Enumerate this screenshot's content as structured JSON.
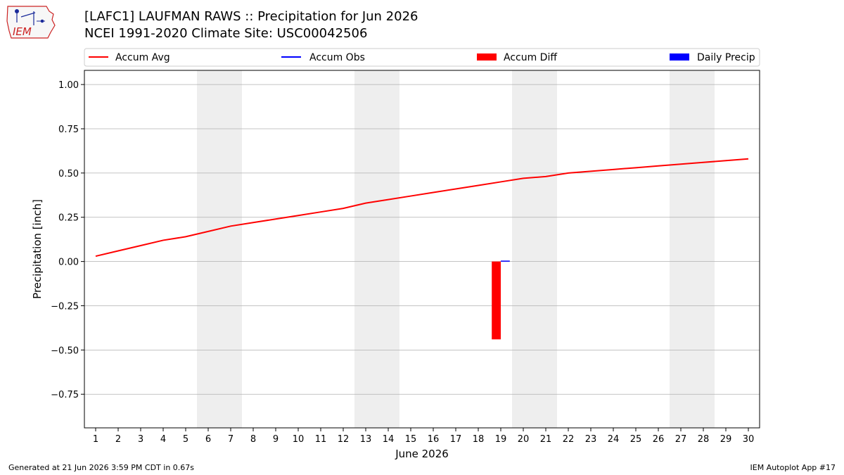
{
  "header": {
    "title_line1": "[LAFC1] LAUFMAN RAWS :: Precipitation for Jun 2026",
    "title_line2": "NCEI 1991-2020 Climate Site: USC00042506"
  },
  "logo": {
    "text": "IEM"
  },
  "footer": {
    "generated": "Generated at 21 Jun 2026 3:59 PM CDT in 0.67s",
    "app": "IEM Autoplot App #17"
  },
  "colors": {
    "accum_avg": "#ff0000",
    "accum_obs": "#0000ff",
    "accum_diff": "#ff0000",
    "daily_precip": "#0000ff",
    "weekend_band": "#eeeeee",
    "grid": "#b0b0b0"
  },
  "chart_data": {
    "type": "line",
    "xlabel": "June 2026",
    "ylabel": "Precipitation [inch]",
    "xlim": [
      0.5,
      30.5
    ],
    "ylim": [
      -0.94,
      1.08
    ],
    "x_ticks": [
      1,
      2,
      3,
      4,
      5,
      6,
      7,
      8,
      9,
      10,
      11,
      12,
      13,
      14,
      15,
      16,
      17,
      18,
      19,
      20,
      21,
      22,
      23,
      24,
      25,
      26,
      27,
      28,
      29,
      30
    ],
    "y_ticks": [
      1.0,
      0.75,
      0.5,
      0.25,
      0.0,
      -0.25,
      -0.5,
      -0.75
    ],
    "y_tick_labels": [
      "1.00",
      "0.75",
      "0.50",
      "0.25",
      "0.00",
      "−0.25",
      "−0.50",
      "−0.75"
    ],
    "grid": "horizontal",
    "legend_position": "top",
    "legend": [
      {
        "label": "Accum Avg",
        "kind": "line",
        "color": "#ff0000"
      },
      {
        "label": "Accum Obs",
        "kind": "line",
        "color": "#0000ff"
      },
      {
        "label": "Accum Diff",
        "kind": "bar",
        "color": "#ff0000"
      },
      {
        "label": "Daily Precip",
        "kind": "bar",
        "color": "#0000ff"
      }
    ],
    "weekend_days": [
      6,
      7,
      13,
      14,
      20,
      21,
      27,
      28
    ],
    "series": [
      {
        "name": "Accum Avg",
        "type": "line",
        "x": [
          1,
          2,
          3,
          4,
          5,
          6,
          7,
          8,
          9,
          10,
          11,
          12,
          13,
          14,
          15,
          16,
          17,
          18,
          19,
          20,
          21,
          22,
          23,
          24,
          25,
          26,
          27,
          28,
          29,
          30
        ],
        "values": [
          0.03,
          0.06,
          0.09,
          0.12,
          0.14,
          0.17,
          0.2,
          0.22,
          0.24,
          0.26,
          0.28,
          0.3,
          0.33,
          0.35,
          0.37,
          0.39,
          0.41,
          0.43,
          0.45,
          0.47,
          0.48,
          0.5,
          0.51,
          0.52,
          0.53,
          0.54,
          0.55,
          0.56,
          0.57,
          0.58
        ]
      },
      {
        "name": "Accum Obs",
        "type": "line",
        "x": [
          19
        ],
        "values": [
          0.0
        ]
      },
      {
        "name": "Accum Diff",
        "type": "bar",
        "x": [
          19
        ],
        "values": [
          -0.44
        ]
      },
      {
        "name": "Daily Precip",
        "type": "bar",
        "x": [
          19
        ],
        "values": [
          0.005
        ]
      }
    ]
  }
}
